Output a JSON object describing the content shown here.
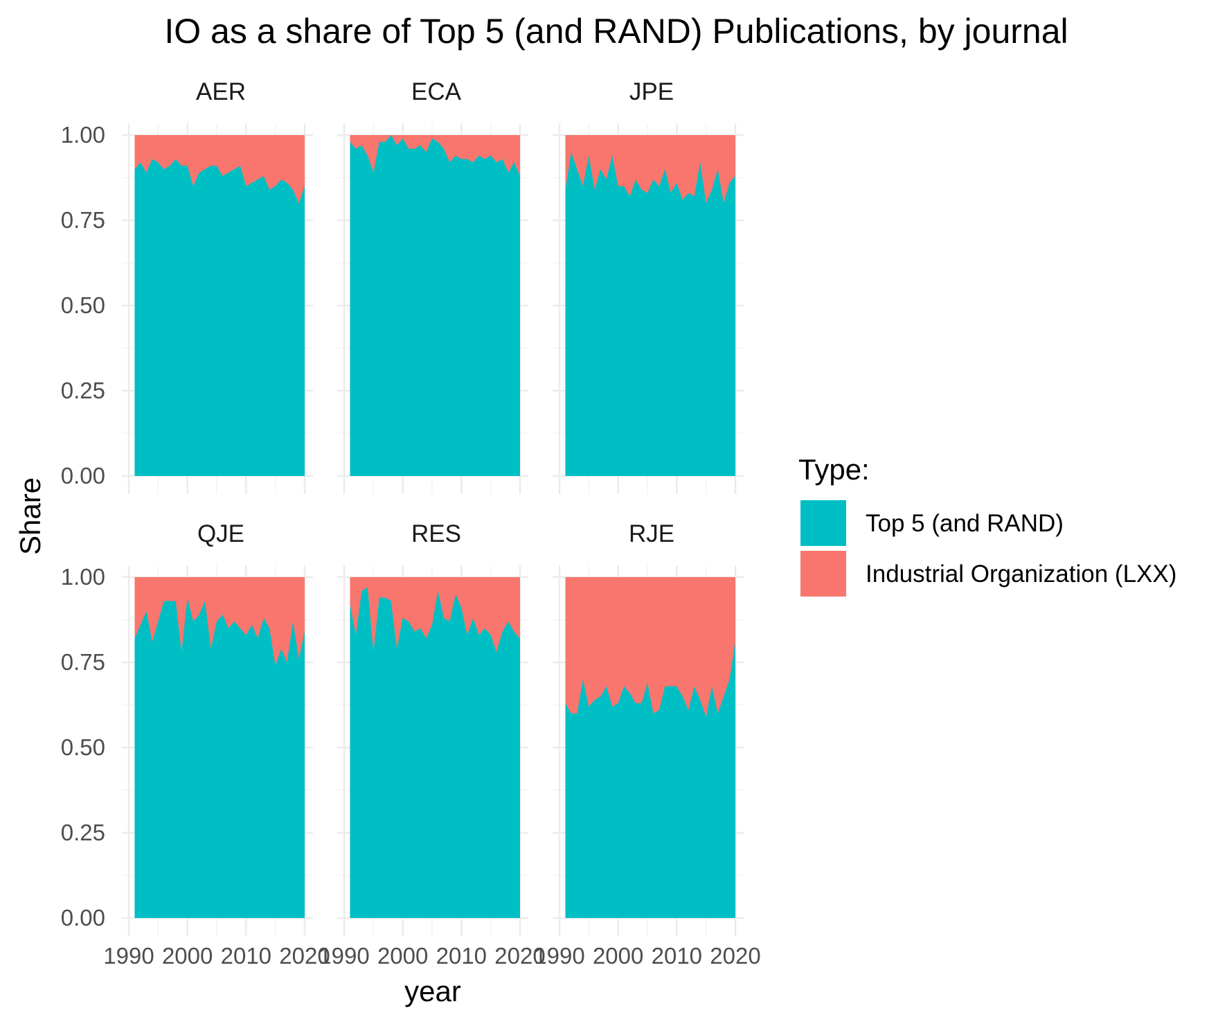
{
  "chart_data": {
    "type": "area",
    "title": "IO as a share of Top 5 (and RAND) Publications, by journal",
    "xlabel": "year",
    "ylabel": "Share",
    "xlim": [
      1990,
      2020
    ],
    "ylim": [
      0,
      1
    ],
    "x_ticks": [
      "1990",
      "2000",
      "2010",
      "2020"
    ],
    "y_ticks": [
      "0.00",
      "0.25",
      "0.50",
      "0.75",
      "1.00"
    ],
    "stacked": true,
    "grid": true,
    "legend": {
      "title": "Type:",
      "position": "right",
      "entries": [
        {
          "label": "Top 5 (and RAND)",
          "color": "#00BFC4"
        },
        {
          "label": "Industrial Organization (LXX)",
          "color": "#F8766D"
        }
      ]
    },
    "x": [
      1991,
      1992,
      1993,
      1994,
      1995,
      1996,
      1997,
      1998,
      1999,
      2000,
      2001,
      2002,
      2003,
      2004,
      2005,
      2006,
      2007,
      2008,
      2009,
      2010,
      2011,
      2012,
      2013,
      2014,
      2015,
      2016,
      2017,
      2018,
      2019,
      2020
    ],
    "panels": [
      {
        "name": "AER",
        "top5_share": [
          0.9,
          0.92,
          0.89,
          0.93,
          0.92,
          0.9,
          0.91,
          0.93,
          0.91,
          0.91,
          0.85,
          0.89,
          0.9,
          0.91,
          0.91,
          0.88,
          0.89,
          0.9,
          0.91,
          0.85,
          0.86,
          0.87,
          0.88,
          0.84,
          0.85,
          0.87,
          0.86,
          0.84,
          0.8,
          0.85
        ]
      },
      {
        "name": "ECA",
        "top5_share": [
          0.98,
          0.96,
          0.97,
          0.94,
          0.89,
          0.98,
          0.98,
          1.0,
          0.97,
          0.99,
          0.96,
          0.96,
          0.97,
          0.95,
          0.99,
          0.98,
          0.96,
          0.92,
          0.94,
          0.93,
          0.93,
          0.92,
          0.94,
          0.93,
          0.94,
          0.92,
          0.93,
          0.89,
          0.92,
          0.88
        ]
      },
      {
        "name": "JPE",
        "top5_share": [
          0.84,
          0.95,
          0.9,
          0.85,
          0.94,
          0.84,
          0.9,
          0.87,
          0.94,
          0.85,
          0.85,
          0.82,
          0.87,
          0.84,
          0.83,
          0.87,
          0.85,
          0.9,
          0.83,
          0.86,
          0.81,
          0.83,
          0.82,
          0.92,
          0.8,
          0.84,
          0.9,
          0.8,
          0.86,
          0.88
        ]
      },
      {
        "name": "QJE",
        "top5_share": [
          0.82,
          0.86,
          0.9,
          0.81,
          0.87,
          0.93,
          0.93,
          0.93,
          0.78,
          0.94,
          0.87,
          0.89,
          0.93,
          0.79,
          0.87,
          0.89,
          0.85,
          0.87,
          0.85,
          0.83,
          0.86,
          0.82,
          0.88,
          0.85,
          0.74,
          0.79,
          0.75,
          0.87,
          0.76,
          0.84
        ]
      },
      {
        "name": "RES",
        "top5_share": [
          0.92,
          0.83,
          0.96,
          0.97,
          0.78,
          0.94,
          0.94,
          0.93,
          0.79,
          0.88,
          0.87,
          0.84,
          0.85,
          0.82,
          0.86,
          0.96,
          0.88,
          0.87,
          0.95,
          0.91,
          0.83,
          0.88,
          0.83,
          0.85,
          0.83,
          0.78,
          0.84,
          0.87,
          0.84,
          0.82
        ]
      },
      {
        "name": "RJE",
        "top5_share": [
          0.63,
          0.6,
          0.6,
          0.7,
          0.62,
          0.64,
          0.65,
          0.68,
          0.62,
          0.63,
          0.68,
          0.66,
          0.63,
          0.63,
          0.69,
          0.6,
          0.61,
          0.68,
          0.68,
          0.68,
          0.65,
          0.61,
          0.68,
          0.64,
          0.59,
          0.68,
          0.6,
          0.65,
          0.7,
          0.81
        ]
      }
    ]
  }
}
